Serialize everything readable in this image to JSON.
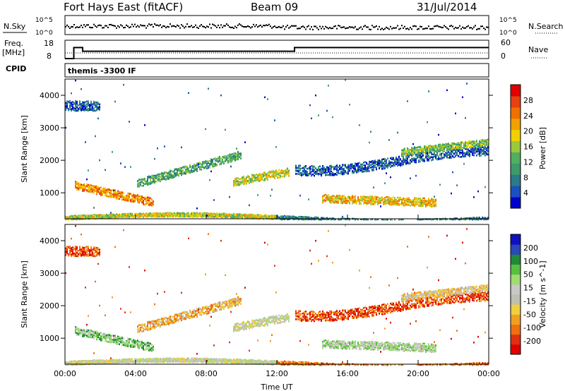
{
  "header": {
    "title": "Fort Hays East (fitACF)",
    "beam": "Beam 09",
    "date": "31/Jul/2014"
  },
  "summary_panels": {
    "nsky_label": "N.Sky",
    "nsky_ticks": [
      "10^5",
      "10^0"
    ],
    "nsearch_label": "N.Search",
    "nsearch_ticks": [
      "10^5",
      "10^0"
    ],
    "freq_label": "Freq.",
    "freq_unit": "[MHz]",
    "freq_ticks": [
      "18",
      "8"
    ],
    "nave_label": "Nave",
    "nave_ticks": [
      "60",
      "0"
    ],
    "cpid_label": "CPID",
    "cpid_value": "themis -3300 IF"
  },
  "colors": {
    "power_scale": [
      "#0000cc",
      "#1a50c0",
      "#2a7a8a",
      "#3f9a6a",
      "#4fb060",
      "#9bc83a",
      "#f0d000",
      "#f0a000",
      "#f07000",
      "#e84010",
      "#e00000"
    ],
    "velocity_scale": [
      "#1010c0",
      "#2a48b8",
      "#1f8a3a",
      "#58c040",
      "#a0dc70",
      "#c8c8c8",
      "#c0c0b0",
      "#f0d040",
      "#f0a020",
      "#f07010",
      "#e03010",
      "#e00000"
    ]
  },
  "chart_data": [
    {
      "type": "line",
      "title": "N.Sky / N.Search",
      "ylabel": "N.Sky",
      "y2label": "N.Search",
      "y_ticks": [
        "10^0",
        "10^5"
      ],
      "x_ticks": [
        "00:00",
        "04:00",
        "08:00",
        "12:00",
        "16:00",
        "20:00",
        "00:00"
      ]
    },
    {
      "type": "line",
      "title": "Freq / Nave",
      "ylabel": "Freq. [MHz]",
      "y2label": "Nave",
      "ylim": [
        8,
        18
      ],
      "y2lim": [
        0,
        60
      ],
      "series": [
        {
          "name": "Freq.",
          "x": [
            0,
            0.5,
            0.5,
            1.0,
            1.0,
            13.0,
            13.0,
            24.0
          ],
          "values": [
            8,
            8,
            14,
            14,
            12,
            12,
            14,
            14
          ]
        }
      ]
    },
    {
      "type": "heatmap",
      "ylabel": "Slant Range [km]",
      "ylim": [
        200,
        4500
      ],
      "y_ticks": [
        1000,
        2000,
        3000,
        4000
      ],
      "xlim": [
        0,
        24
      ],
      "x_ticks": [
        "00:00",
        "04:00",
        "08:00",
        "12:00",
        "16:00",
        "20:00",
        "00:00"
      ],
      "colorbar": {
        "label": "Power [dB]",
        "ticks": [
          4,
          8,
          12,
          16,
          20,
          24,
          28
        ]
      }
    },
    {
      "type": "heatmap",
      "ylabel": "Slant Range [km]",
      "xlabel": "Time UT",
      "ylim": [
        200,
        4500
      ],
      "y_ticks": [
        1000,
        2000,
        3000,
        4000
      ],
      "xlim": [
        0,
        24
      ],
      "x_ticks": [
        "00:00",
        "04:00",
        "08:00",
        "12:00",
        "16:00",
        "20:00",
        "00:00"
      ],
      "colorbar": {
        "label": "Velocity [m s^-1]",
        "ticks": [
          200,
          100,
          50,
          15,
          -15,
          -50,
          -100,
          -200
        ]
      }
    }
  ]
}
